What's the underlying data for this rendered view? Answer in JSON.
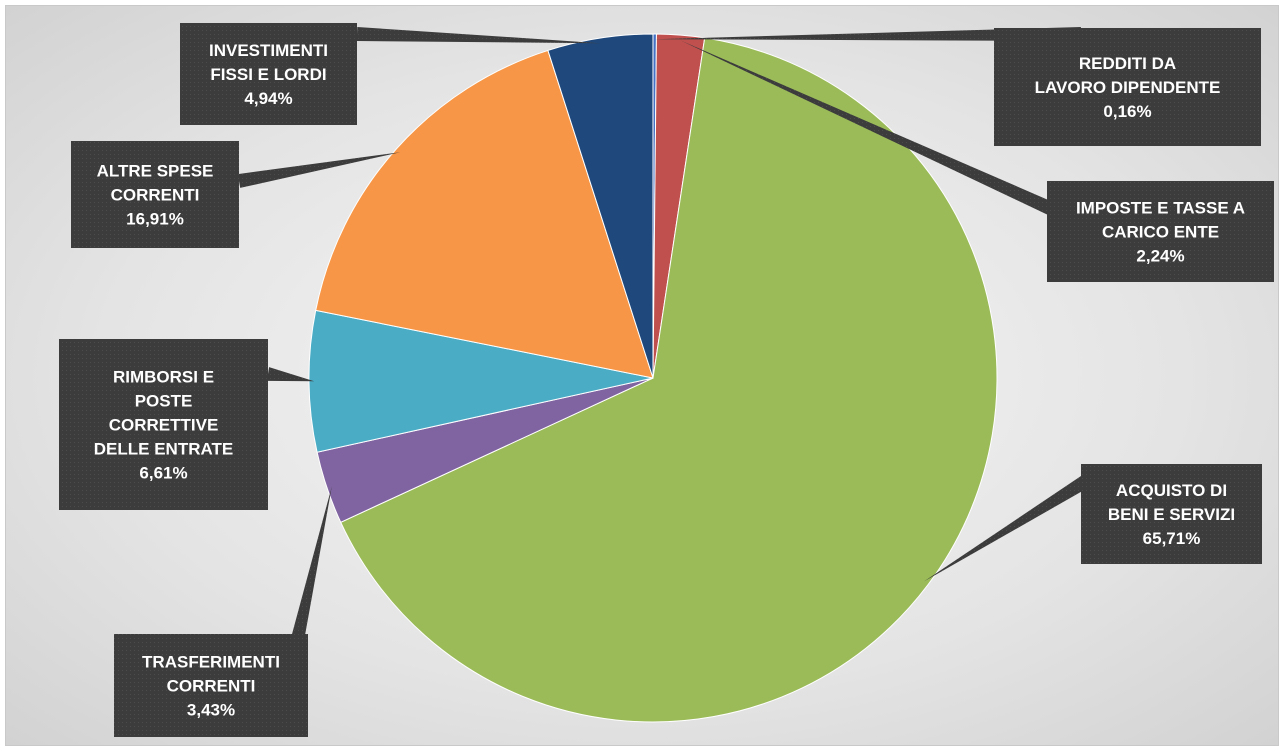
{
  "chart_data": {
    "type": "pie",
    "title": "",
    "start_angle_deg": 0,
    "direction": "clockwise",
    "legend": "none",
    "slices": [
      {
        "label_lines": [
          "REDDITI DA",
          "LAVORO DIPENDENTE"
        ],
        "value_label": "0,16%",
        "value": 0.16,
        "color": "#4472c4"
      },
      {
        "label_lines": [
          "IMPOSTE E TASSE A",
          "CARICO ENTE"
        ],
        "value_label": "2,24%",
        "value": 2.24,
        "color": "#c0504d"
      },
      {
        "label_lines": [
          "ACQUISTO DI",
          "BENI E SERVIZI"
        ],
        "value_label": "65,71%",
        "value": 65.71,
        "color": "#9bbb59"
      },
      {
        "label_lines": [
          "TRASFERIMENTI",
          "CORRENTI"
        ],
        "value_label": "3,43%",
        "value": 3.43,
        "color": "#8064a2"
      },
      {
        "label_lines": [
          "RIMBORSI E",
          "POSTE",
          "CORRETTIVE",
          "DELLE ENTRATE"
        ],
        "value_label": "6,61%",
        "value": 6.61,
        "color": "#4bacc6"
      },
      {
        "label_lines": [
          "ALTRE SPESE",
          "CORRENTI"
        ],
        "value_label": "16,91%",
        "value": 16.91,
        "color": "#f79646"
      },
      {
        "label_lines": [
          "INVESTIMENTI",
          "FISSI E LORDI"
        ],
        "value_label": "4,94%",
        "value": 4.94,
        "color": "#1f497d"
      }
    ]
  }
}
